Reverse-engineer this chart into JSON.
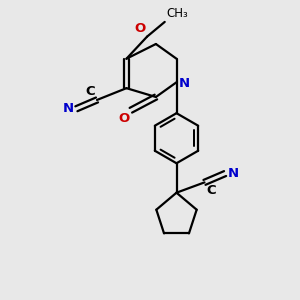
{
  "background_color": "#e8e8e8",
  "bond_color": "#000000",
  "nitrogen_color": "#0000cc",
  "oxygen_color": "#cc0000",
  "figsize": [
    3.0,
    3.0
  ],
  "dpi": 100,
  "xlim": [
    0,
    10
  ],
  "ylim": [
    0,
    10
  ]
}
